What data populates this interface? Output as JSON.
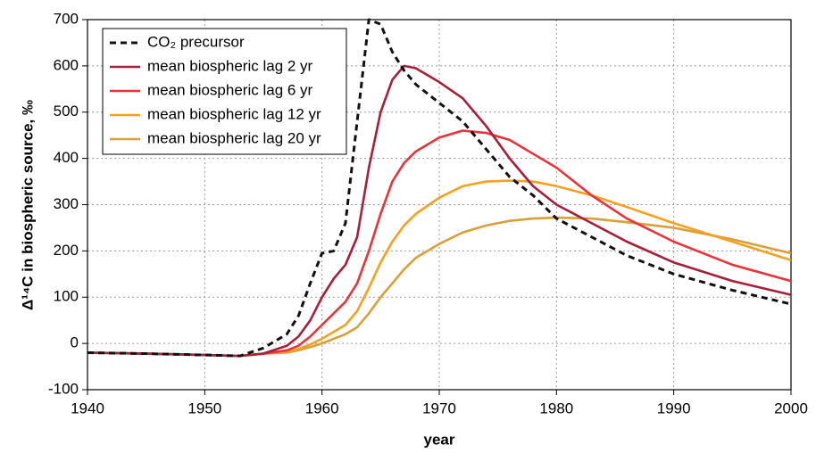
{
  "chart_data": {
    "type": "line",
    "xlabel": "year",
    "ylabel": "Δ¹⁴C in biospheric source, ‰",
    "x": [
      1940,
      1945,
      1950,
      1953,
      1955,
      1957,
      1958,
      1959,
      1960,
      1961,
      1962,
      1963,
      1964,
      1965,
      1966,
      1967,
      1968,
      1970,
      1972,
      1974,
      1976,
      1978,
      1980,
      1983,
      1986,
      1990,
      1995,
      2000
    ],
    "series": [
      {
        "name": "CO₂ precursor",
        "color": "#111111",
        "dashed": true,
        "values": [
          -20,
          -22,
          -25,
          -27,
          -10,
          20,
          60,
          130,
          195,
          200,
          260,
          480,
          700,
          690,
          630,
          590,
          560,
          520,
          480,
          420,
          360,
          320,
          270,
          230,
          190,
          150,
          115,
          85
        ]
      },
      {
        "name": "mean biospheric lag 2 yr",
        "color": "#a6203a",
        "dashed": false,
        "values": [
          -20,
          -22,
          -25,
          -27,
          -22,
          -5,
          15,
          50,
          100,
          140,
          170,
          230,
          380,
          500,
          570,
          600,
          595,
          565,
          530,
          470,
          400,
          340,
          300,
          260,
          220,
          175,
          135,
          105
        ]
      },
      {
        "name": "mean biospheric lag 6 yr",
        "color": "#e8333a",
        "dashed": false,
        "values": [
          -20,
          -22,
          -25,
          -27,
          -22,
          -15,
          -5,
          15,
          40,
          65,
          90,
          130,
          200,
          280,
          350,
          390,
          415,
          445,
          460,
          455,
          440,
          410,
          380,
          320,
          270,
          220,
          170,
          135
        ]
      },
      {
        "name": "mean biospheric lag 12 yr",
        "color": "#f5a020",
        "dashed": false,
        "values": [
          -20,
          -22,
          -25,
          -27,
          -22,
          -18,
          -12,
          -2,
          10,
          25,
          40,
          70,
          120,
          175,
          220,
          255,
          280,
          315,
          340,
          350,
          352,
          350,
          340,
          320,
          295,
          260,
          220,
          180
        ]
      },
      {
        "name": "mean biospheric lag 20 yr",
        "color": "#d8a038",
        "dashed": false,
        "values": [
          -20,
          -22,
          -25,
          -27,
          -22,
          -20,
          -15,
          -8,
          0,
          10,
          20,
          35,
          65,
          100,
          130,
          160,
          185,
          215,
          240,
          255,
          265,
          270,
          272,
          270,
          262,
          250,
          225,
          195
        ]
      }
    ],
    "xlim": [
      1940,
      2000
    ],
    "xticks": [
      1940,
      1950,
      1960,
      1970,
      1980,
      1990,
      2000
    ],
    "ylim": [
      -100,
      700
    ],
    "yticks": [
      -100,
      0,
      100,
      200,
      300,
      400,
      500,
      600,
      700
    ],
    "grid": true,
    "legend": "upper-left"
  }
}
